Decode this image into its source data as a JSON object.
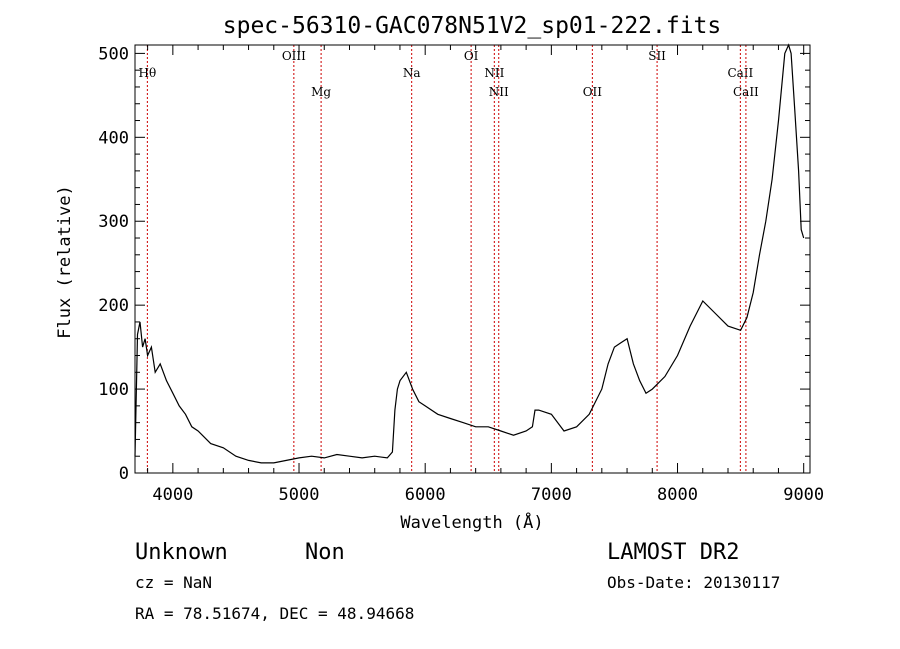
{
  "chart_data": {
    "type": "line",
    "title": "spec-56310-GAC078N51V2_sp01-222.fits",
    "xlabel": "Wavelength (Å)",
    "ylabel": "Flux (relative)",
    "xlim": [
      3700,
      9050
    ],
    "ylim": [
      0,
      510
    ],
    "xticks": [
      4000,
      5000,
      6000,
      7000,
      8000,
      9000
    ],
    "yticks": [
      0,
      100,
      200,
      300,
      400,
      500
    ],
    "grid": false,
    "line_color": "#000000",
    "marker_color": "#cc0000",
    "spectrum": {
      "x": [
        3700,
        3720,
        3740,
        3760,
        3780,
        3800,
        3830,
        3860,
        3900,
        3950,
        4000,
        4050,
        4100,
        4150,
        4200,
        4300,
        4400,
        4500,
        4600,
        4700,
        4800,
        4900,
        5000,
        5100,
        5200,
        5300,
        5400,
        5500,
        5600,
        5700,
        5740,
        5760,
        5780,
        5800,
        5850,
        5900,
        5950,
        6000,
        6100,
        6200,
        6300,
        6400,
        6500,
        6600,
        6700,
        6800,
        6850,
        6870,
        6900,
        7000,
        7100,
        7200,
        7300,
        7400,
        7450,
        7500,
        7550,
        7600,
        7650,
        7700,
        7750,
        7800,
        7900,
        8000,
        8100,
        8200,
        8300,
        8400,
        8500,
        8550,
        8600,
        8650,
        8700,
        8750,
        8800,
        8850,
        8880,
        8900,
        8930,
        8960,
        8980,
        9000
      ],
      "y": [
        20,
        165,
        180,
        150,
        160,
        140,
        150,
        120,
        130,
        110,
        95,
        80,
        70,
        55,
        50,
        35,
        30,
        20,
        15,
        12,
        12,
        15,
        18,
        20,
        18,
        22,
        20,
        18,
        20,
        18,
        25,
        75,
        100,
        110,
        120,
        100,
        85,
        80,
        70,
        65,
        60,
        55,
        55,
        50,
        45,
        50,
        55,
        75,
        75,
        70,
        50,
        55,
        70,
        100,
        130,
        150,
        155,
        160,
        130,
        110,
        95,
        100,
        115,
        140,
        175,
        205,
        190,
        175,
        170,
        185,
        215,
        260,
        300,
        350,
        420,
        500,
        510,
        500,
        430,
        360,
        290,
        280
      ]
    },
    "markers": [
      {
        "name": "Hθ",
        "x": 3798,
        "row": 0
      },
      {
        "name": "OIII",
        "x": 4959,
        "row": 1
      },
      {
        "name": "Mg",
        "x": 5175,
        "row": 2
      },
      {
        "name": "Na",
        "x": 5893,
        "row": 0
      },
      {
        "name": "OI",
        "x": 6364,
        "row": 1
      },
      {
        "name": "NII",
        "x": 6548,
        "row": 0
      },
      {
        "name": "NII",
        "x": 6583,
        "row": 2
      },
      {
        "name": "OII",
        "x": 7325,
        "row": 2
      },
      {
        "name": "SII",
        "x": 7838,
        "row": 1
      },
      {
        "name": "CaII",
        "x": 8498,
        "row": 0
      },
      {
        "name": "CaII",
        "x": 8542,
        "row": 2
      }
    ]
  },
  "info": {
    "object_class": "Unknown",
    "subclass": "Non",
    "redshift_text": "cz = NaN",
    "coords_text": "RA =  78.51674, DEC =  48.94668",
    "survey": "LAMOST DR2",
    "obs_date_text": "Obs-Date: 20130117"
  }
}
